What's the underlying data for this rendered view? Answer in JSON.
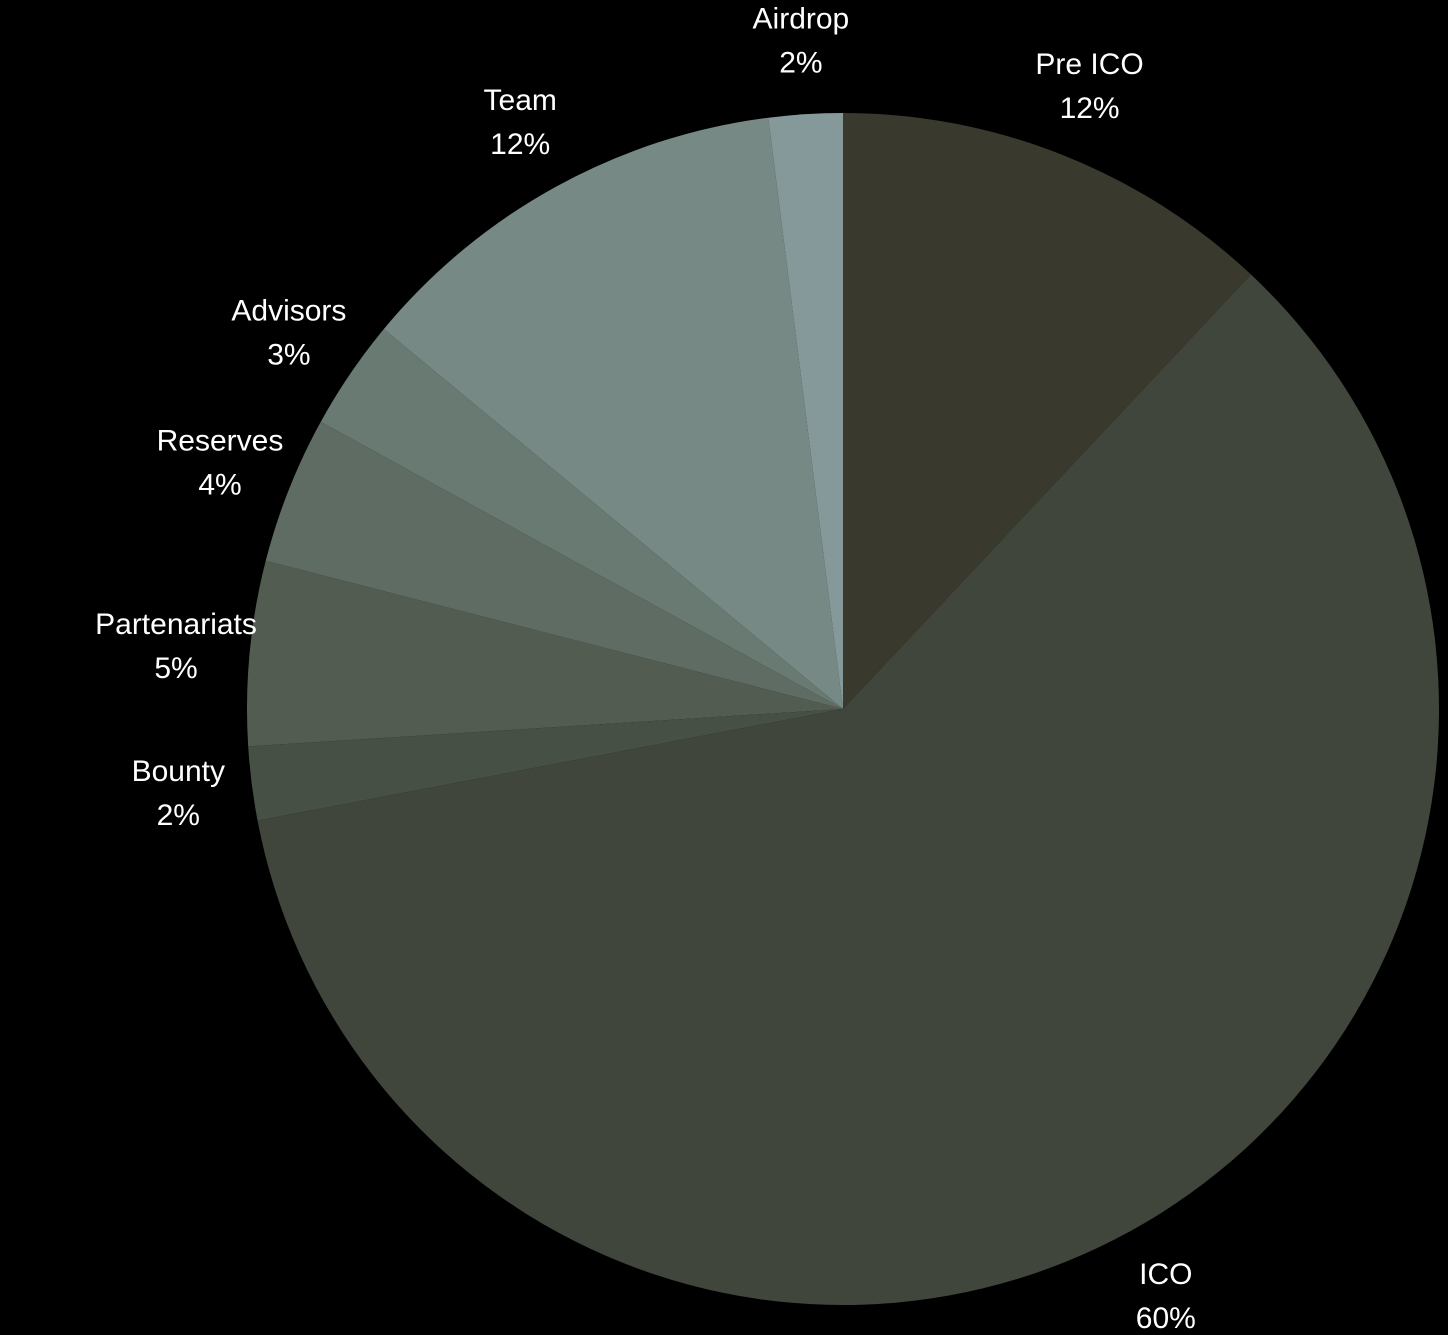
{
  "chart_data": {
    "type": "pie",
    "title": "",
    "start_angle_deg": 0,
    "direction": "clockwise",
    "background": "#000000",
    "label_color": "#ffffff",
    "slices": [
      {
        "label": "Pre ICO",
        "value": 12,
        "value_label": "12%",
        "color": "#393a2d"
      },
      {
        "label": "ICO",
        "value": 60,
        "value_label": "60%",
        "color": "#40463b"
      },
      {
        "label": "Bounty",
        "value": 2,
        "value_label": "2%",
        "color": "#475044"
      },
      {
        "label": "Partenariats",
        "value": 5,
        "value_label": "5%",
        "color": "#525c51"
      },
      {
        "label": "Reserves",
        "value": 4,
        "value_label": "4%",
        "color": "#5e6c64"
      },
      {
        "label": "Advisors",
        "value": 3,
        "value_label": "3%",
        "color": "#687a72"
      },
      {
        "label": "Team",
        "value": 12,
        "value_label": "12%",
        "color": "#768985"
      },
      {
        "label": "Airdrop",
        "value": 2,
        "value_label": "2%",
        "color": "#86999a"
      }
    ]
  }
}
